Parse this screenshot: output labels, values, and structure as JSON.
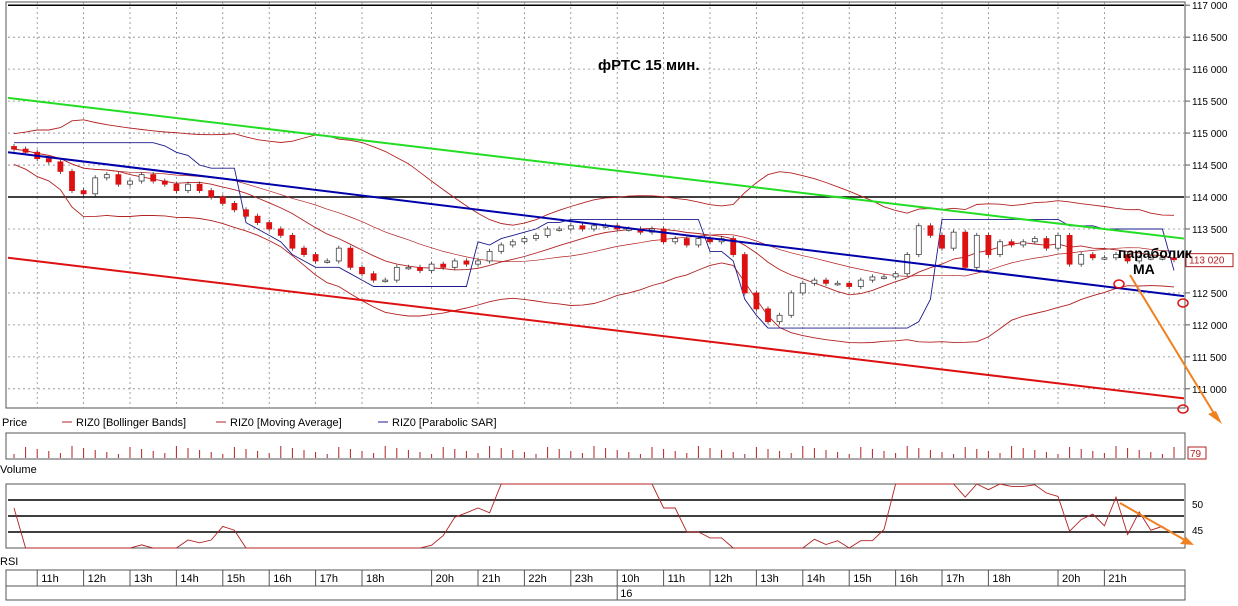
{
  "chart_data": {
    "type": "candlestick",
    "title": "фРТС   15 мин.",
    "y_axis": {
      "ylim": [
        110700,
        117050
      ],
      "ticks": [
        {
          "value": 117000,
          "label": "117 000"
        },
        {
          "value": 116500,
          "label": "116 500"
        },
        {
          "value": 116000,
          "label": "116 000"
        },
        {
          "value": 115500,
          "label": "115 500"
        },
        {
          "value": 115000,
          "label": "115 000"
        },
        {
          "value": 114500,
          "label": "114 500"
        },
        {
          "value": 114000,
          "label": "114 000"
        },
        {
          "value": 113500,
          "label": "113 500"
        },
        {
          "value": 112500,
          "label": "112 500"
        },
        {
          "value": 112000,
          "label": "112 000"
        },
        {
          "value": 111500,
          "label": "111 500"
        },
        {
          "value": 111000,
          "label": "111 000"
        }
      ],
      "current_price_label": "113 020",
      "current_price": 113020
    },
    "x_axis": {
      "ticks": [
        "11h",
        "12h",
        "13h",
        "14h",
        "15h",
        "16h",
        "17h",
        "18h",
        "20h",
        "21h",
        "22h",
        "23h",
        "10h",
        "11h",
        "12h",
        "13h",
        "14h",
        "15h",
        "16h",
        "17h",
        "18h",
        "20h",
        "21h"
      ],
      "tick_bar_index": [
        3,
        7,
        11,
        15,
        19,
        23,
        27,
        31,
        37,
        41,
        45,
        49,
        53,
        57,
        61,
        65,
        69,
        73,
        77,
        81,
        85,
        91,
        95
      ],
      "date_label": "16",
      "date_bar_index": 53
    },
    "legend": [
      {
        "name": "Price",
        "color": "#000000"
      },
      {
        "name": "RIZ0 [Bollinger Bands]",
        "color": "#b22222"
      },
      {
        "name": "RIZ0 [Moving Average]",
        "color": "#b22222"
      },
      {
        "name": "RIZ0 [Parabolic SAR]",
        "color": "#1a1a8c"
      }
    ],
    "candles_close": [
      114750,
      114700,
      114600,
      114550,
      114400,
      114100,
      114050,
      114300,
      114350,
      114200,
      114250,
      114350,
      114250,
      114200,
      114100,
      114200,
      114100,
      114000,
      113900,
      113800,
      113700,
      113600,
      113500,
      113400,
      113200,
      113100,
      113000,
      113000,
      113200,
      112900,
      112800,
      112700,
      112700,
      112900,
      112900,
      112850,
      112950,
      112900,
      113000,
      112950,
      113000,
      113150,
      113250,
      113300,
      113350,
      113400,
      113500,
      113500,
      113550,
      113500,
      113550,
      113550,
      113500,
      113500,
      113450,
      113500,
      113300,
      113350,
      113250,
      113350,
      113300,
      113350,
      113100,
      112500,
      112250,
      112050,
      112150,
      112500,
      112650,
      112700,
      112650,
      112650,
      112600,
      112700,
      112750,
      112750,
      112800,
      113100,
      113550,
      113400,
      113200,
      113450,
      112900,
      113400,
      113100,
      113300,
      113250,
      113300,
      113350,
      113200,
      113400,
      112950,
      113100,
      113050,
      113050,
      113100,
      113000,
      113050,
      113050,
      113050,
      113020
    ],
    "channel_lines": [
      {
        "name": "upper",
        "color": "#22dd22",
        "from": 115550,
        "to": 113350
      },
      {
        "name": "middle",
        "color": "#0000aa",
        "from": 114700,
        "to": 112450
      },
      {
        "name": "lower",
        "color": "#dd1111",
        "from": 113050,
        "to": 110850
      }
    ],
    "horizontal_levels": [
      117000,
      114000
    ],
    "annotations": [
      {
        "text": "параболик",
        "value": 113500
      },
      {
        "text": "MA",
        "value": 113060
      }
    ],
    "volume": {
      "label": "Volume",
      "last": "79"
    },
    "rsi": {
      "label": "RSI",
      "ticks": [
        {
          "value": 50,
          "label": "50"
        },
        {
          "value": 45,
          "label": "45"
        }
      ],
      "levels": [
        52,
        48,
        44
      ]
    }
  }
}
